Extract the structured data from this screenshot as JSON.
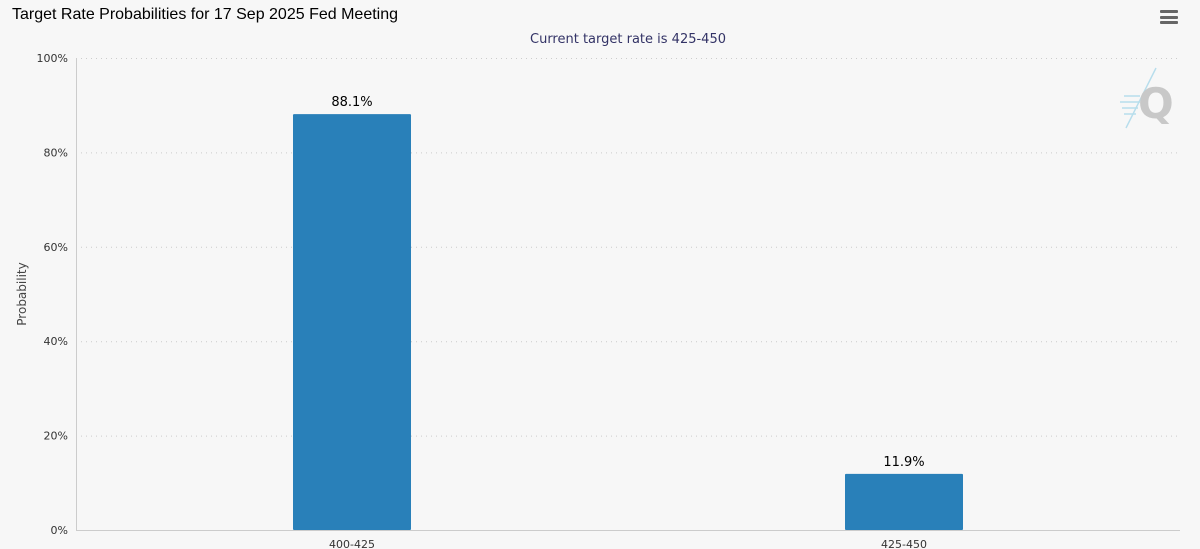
{
  "header": {
    "title": "Target Rate Probabilities for 17 Sep 2025 Fed Meeting",
    "menu_icon": "hamburger-menu-icon",
    "logo_icon": "quikstrike-q-logo-icon"
  },
  "colors": {
    "bar": "#2980b9",
    "background": "#f7f7f7",
    "grid": "#cccccc"
  },
  "chart_data": {
    "type": "bar",
    "title": "Target Rate Probabilities for 17 Sep 2025 Fed Meeting",
    "subtitle": "Current target rate is 425-450",
    "xlabel": "",
    "ylabel": "Probability",
    "categories": [
      "400-425",
      "425-450"
    ],
    "values": [
      88.1,
      11.9
    ],
    "data_labels": [
      "88.1%",
      "11.9%"
    ],
    "ylim": [
      0,
      100
    ],
    "yticks": [
      0,
      20,
      40,
      60,
      80,
      100
    ],
    "ytick_labels": [
      "0%",
      "20%",
      "40%",
      "60%",
      "80%",
      "100%"
    ],
    "grid": true,
    "legend": "none"
  }
}
